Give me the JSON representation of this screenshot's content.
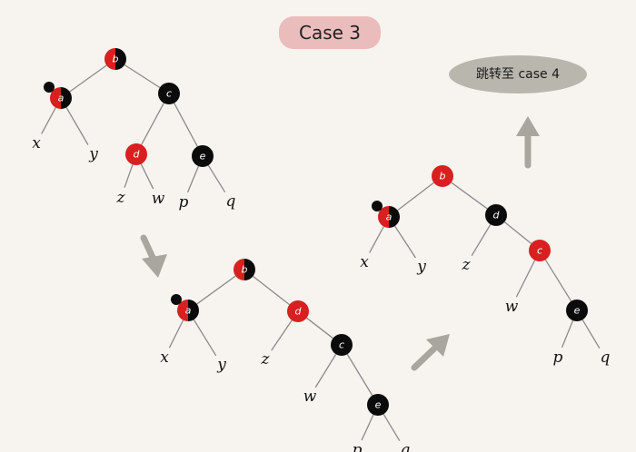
{
  "title": "Case 3",
  "badge": "跳转至 case 4",
  "colors": {
    "red": "#d7201f",
    "black": "#0b0b0b",
    "title_bg": "#ebbcbc",
    "badge_bg": "#b9b6ad",
    "arrow": "#a9a6a0"
  },
  "trees": [
    {
      "nodes": [
        {
          "id": "b",
          "label": "b",
          "color": "half"
        },
        {
          "id": "a",
          "label": "a",
          "color": "half",
          "dot": true
        },
        {
          "id": "c",
          "label": "c",
          "color": "black"
        },
        {
          "id": "x",
          "label": "x",
          "leaf": true
        },
        {
          "id": "y",
          "label": "y",
          "leaf": true
        },
        {
          "id": "d",
          "label": "d",
          "color": "red"
        },
        {
          "id": "e",
          "label": "e",
          "color": "black"
        },
        {
          "id": "z",
          "label": "z",
          "leaf": true
        },
        {
          "id": "w",
          "label": "w",
          "leaf": true
        },
        {
          "id": "p",
          "label": "p",
          "leaf": true
        },
        {
          "id": "q",
          "label": "q",
          "leaf": true
        }
      ],
      "edges": [
        [
          "b",
          "a"
        ],
        [
          "b",
          "c"
        ],
        [
          "a",
          "x"
        ],
        [
          "a",
          "y"
        ],
        [
          "c",
          "d"
        ],
        [
          "c",
          "e"
        ],
        [
          "d",
          "z"
        ],
        [
          "d",
          "w"
        ],
        [
          "e",
          "p"
        ],
        [
          "e",
          "q"
        ]
      ]
    },
    {
      "nodes": [
        {
          "id": "b",
          "label": "b",
          "color": "half"
        },
        {
          "id": "a",
          "label": "a",
          "color": "half",
          "dot": true
        },
        {
          "id": "d",
          "label": "d",
          "color": "red"
        },
        {
          "id": "x",
          "label": "x",
          "leaf": true
        },
        {
          "id": "y",
          "label": "y",
          "leaf": true
        },
        {
          "id": "z",
          "label": "z",
          "leaf": true
        },
        {
          "id": "c",
          "label": "c",
          "color": "black"
        },
        {
          "id": "w",
          "label": "w",
          "leaf": true
        },
        {
          "id": "e",
          "label": "e",
          "color": "black"
        },
        {
          "id": "p",
          "label": "p",
          "leaf": true
        },
        {
          "id": "q",
          "label": "q",
          "leaf": true
        }
      ],
      "edges": [
        [
          "b",
          "a"
        ],
        [
          "b",
          "d"
        ],
        [
          "a",
          "x"
        ],
        [
          "a",
          "y"
        ],
        [
          "d",
          "z"
        ],
        [
          "d",
          "c"
        ],
        [
          "c",
          "w"
        ],
        [
          "c",
          "e"
        ],
        [
          "e",
          "p"
        ],
        [
          "e",
          "q"
        ]
      ]
    },
    {
      "nodes": [
        {
          "id": "b",
          "label": "b",
          "color": "red"
        },
        {
          "id": "a",
          "label": "a",
          "color": "half",
          "dot": true
        },
        {
          "id": "d",
          "label": "d",
          "color": "black"
        },
        {
          "id": "x",
          "label": "x",
          "leaf": true
        },
        {
          "id": "y",
          "label": "y",
          "leaf": true
        },
        {
          "id": "z",
          "label": "z",
          "leaf": true
        },
        {
          "id": "c",
          "label": "c",
          "color": "red"
        },
        {
          "id": "w",
          "label": "w",
          "leaf": true
        },
        {
          "id": "e",
          "label": "e",
          "color": "black"
        },
        {
          "id": "p",
          "label": "p",
          "leaf": true
        },
        {
          "id": "q",
          "label": "q",
          "leaf": true
        }
      ],
      "edges": [
        [
          "b",
          "a"
        ],
        [
          "b",
          "d"
        ],
        [
          "a",
          "x"
        ],
        [
          "a",
          "y"
        ],
        [
          "d",
          "z"
        ],
        [
          "d",
          "c"
        ],
        [
          "c",
          "w"
        ],
        [
          "c",
          "e"
        ],
        [
          "e",
          "p"
        ],
        [
          "e",
          "q"
        ]
      ]
    }
  ]
}
